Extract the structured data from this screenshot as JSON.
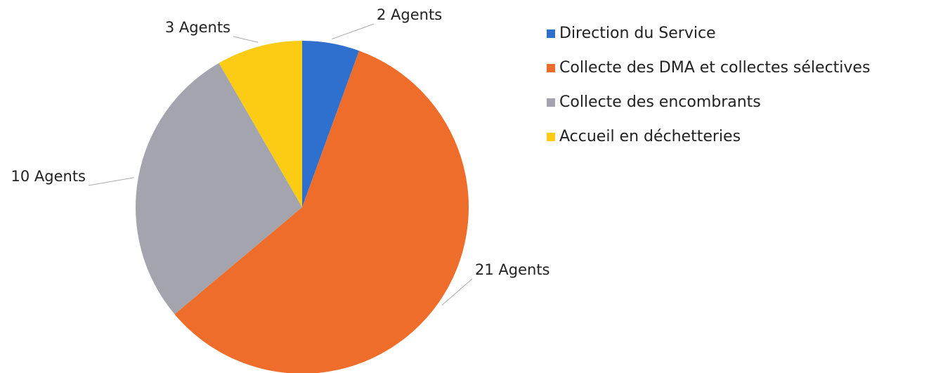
{
  "chart_data": {
    "type": "pie",
    "categories": [
      "Direction du Service",
      "Collecte des DMA et collectes sélectives",
      "Collecte des encombrants",
      "Accueil en déchetteries"
    ],
    "values": [
      2,
      21,
      10,
      3
    ],
    "value_labels": [
      "2 Agents",
      "21 Agents",
      "10 Agents",
      "3 Agents"
    ],
    "colors": [
      "#2f6fce",
      "#ee6d2a",
      "#a4a4ae",
      "#fccb13"
    ],
    "legend": "right"
  }
}
